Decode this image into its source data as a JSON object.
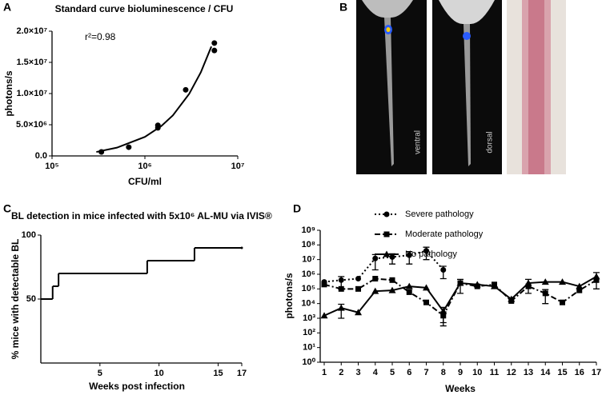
{
  "panel_labels": [
    "A",
    "B",
    "C",
    "D"
  ],
  "photo_labels": [
    "ventral",
    "dorsal"
  ],
  "chart_data": [
    {
      "type": "scatter",
      "title": "Standard curve bioluminescence / CFU",
      "annotation": "r²=0.98",
      "x_label": "CFU/ml",
      "y_label": "photons/s",
      "color": "#000000",
      "x": [
        340000,
        670000,
        1380000,
        1380000,
        2750000,
        5600000,
        5600000
      ],
      "values": [
        640000,
        1400000,
        4500000,
        4900000,
        10600000,
        16900000,
        18100000
      ],
      "curve": {
        "x": [
          300000,
          500000,
          1000000,
          1500000,
          2000000,
          3000000,
          4000000,
          5200000
        ],
        "values": [
          635000,
          1325000,
          3050000,
          4775000,
          6500000,
          9950000,
          13400000,
          17540000
        ]
      },
      "xscale": "log",
      "xlim": [
        100000,
        10000000
      ],
      "xticks": [
        {
          "value": 100000,
          "label": "10⁵"
        },
        {
          "value": 1000000,
          "label": "10⁶"
        },
        {
          "value": 10000000,
          "label": "10⁷"
        }
      ],
      "ylim": [
        0,
        20000000
      ],
      "yticks": [
        {
          "value": 0,
          "label": "0.0"
        },
        {
          "value": 5000000,
          "label": "5.0×10⁶"
        },
        {
          "value": 10000000,
          "label": "1.0×10⁷"
        },
        {
          "value": 15000000,
          "label": "1.5×10⁷"
        },
        {
          "value": 20000000,
          "label": "2.0×10⁷"
        }
      ]
    },
    {
      "type": "step",
      "title": "BL detection in mice infected with 5x10⁶ AL-MU via IVIS®",
      "x_label": "Weeks post infection",
      "y_label": "% mice with detectable BL",
      "color": "#000000",
      "x": [
        0,
        1,
        1.5,
        9,
        13,
        17
      ],
      "values": [
        50,
        60,
        70,
        80,
        90,
        90
      ],
      "xlim": [
        0,
        17
      ],
      "xticks": [
        5,
        10,
        15,
        17
      ],
      "ylim": [
        0,
        100
      ],
      "yticks": [
        50,
        100
      ]
    },
    {
      "type": "line",
      "x_label": "Weeks",
      "y_label": "photons/s",
      "yscale": "log",
      "x": [
        1,
        2,
        3,
        4,
        5,
        6,
        7,
        8,
        9,
        10,
        11,
        12,
        13,
        14,
        15,
        16,
        17
      ],
      "series": [
        {
          "name": "Severe pathology",
          "color": "#000000",
          "marker": "circle",
          "line_style": "dotted",
          "values": [
            300000,
            400000,
            500000,
            12000000,
            15000000,
            20000000,
            40000000,
            2000000,
            null,
            null,
            null,
            null,
            null,
            null,
            null,
            null,
            null
          ],
          "errors": [
            null,
            300000,
            null,
            10000000,
            10000000,
            15000000,
            30000000,
            1500000,
            null,
            null,
            null,
            null,
            null,
            null,
            null,
            null,
            null
          ]
        },
        {
          "name": "Moderate pathology",
          "color": "#000000",
          "marker": "square",
          "line_style": "dashdot",
          "values": [
            200000,
            100000,
            100000,
            500000,
            400000,
            60000,
            12000,
            1500,
            250000,
            150000,
            200000,
            15000,
            150000,
            50000,
            12000,
            80000,
            400000
          ],
          "errors": [
            null,
            null,
            null,
            null,
            null,
            null,
            null,
            1200,
            null,
            null,
            null,
            null,
            null,
            40000,
            null,
            null,
            null
          ]
        },
        {
          "name": "No pathology",
          "color": "#000000",
          "marker": "triangle",
          "line_style": "solid",
          "values": [
            1500,
            5000,
            2500,
            70000,
            80000,
            150000,
            120000,
            3000,
            250000,
            200000,
            150000,
            20000,
            250000,
            300000,
            300000,
            150000,
            700000
          ],
          "errors": [
            null,
            4000,
            null,
            null,
            null,
            null,
            null,
            2500,
            200000,
            null,
            null,
            null,
            200000,
            null,
            null,
            null,
            600000
          ]
        }
      ],
      "xlim": [
        1,
        17
      ],
      "xticks": [
        1,
        2,
        3,
        4,
        5,
        6,
        7,
        8,
        9,
        10,
        11,
        12,
        13,
        14,
        15,
        16,
        17
      ],
      "ylim": [
        1,
        1000000000
      ],
      "yticks": [
        {
          "value": 1,
          "label": "10⁰"
        },
        {
          "value": 10,
          "label": "10¹"
        },
        {
          "value": 100,
          "label": "10²"
        },
        {
          "value": 1000,
          "label": "10³"
        },
        {
          "value": 10000,
          "label": "10⁴"
        },
        {
          "value": 100000,
          "label": "10⁵"
        },
        {
          "value": 1000000,
          "label": "10⁶"
        },
        {
          "value": 10000000,
          "label": "10⁷"
        },
        {
          "value": 100000000,
          "label": "10⁸"
        },
        {
          "value": 1000000000,
          "label": "10⁹"
        }
      ],
      "legend": "upper-right"
    }
  ]
}
